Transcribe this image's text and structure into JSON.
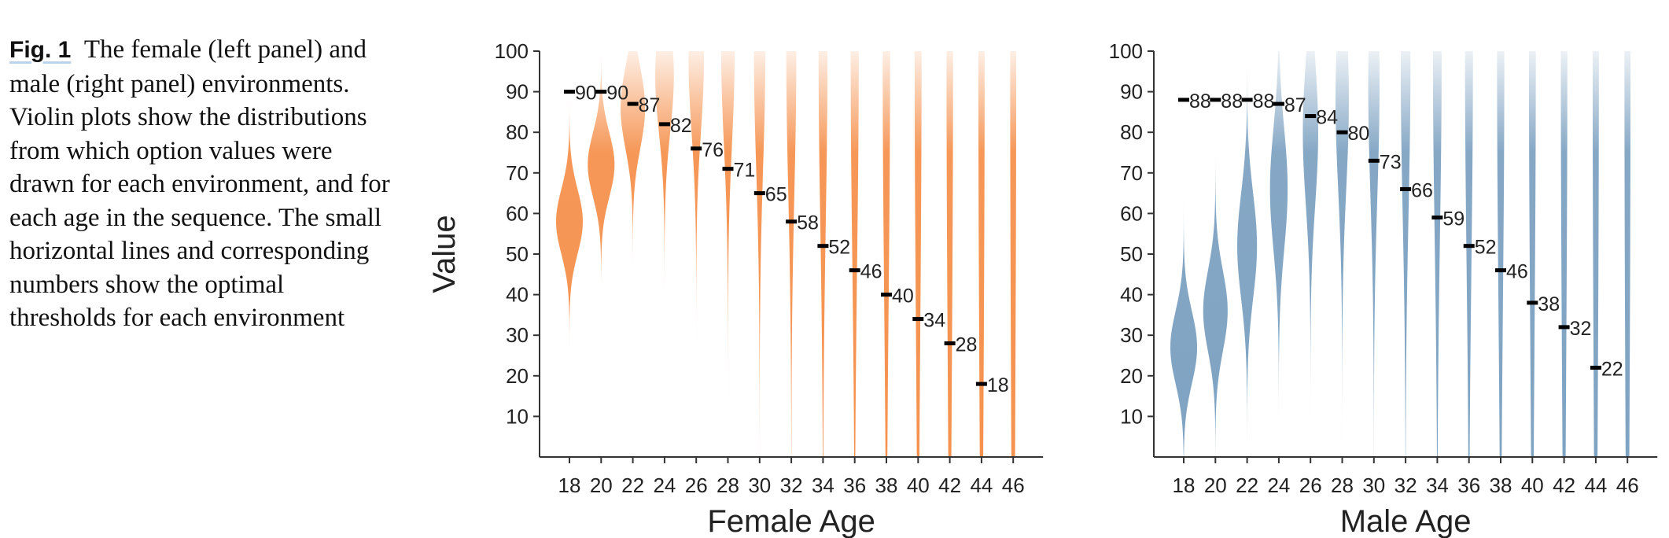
{
  "caption": {
    "label": "Fig. 1",
    "text": "The female (left panel) and male (right panel) environments. Violin plots show the distributions from which option values were drawn for each environment, and for each age in the sequence. The small horizontal lines and corresponding numbers show the optimal thresholds for each environment"
  },
  "colors": {
    "female": "#f5924f",
    "male": "#7fa3c2",
    "axis": "#333333",
    "threshold": "#000000"
  },
  "chart_data": [
    {
      "type": "violin",
      "panel": "left",
      "xlabel": "Female Age",
      "ylabel": "Value",
      "ylim": [
        0,
        100
      ],
      "yticks": [
        10,
        20,
        30,
        40,
        50,
        60,
        70,
        80,
        90,
        100
      ],
      "ages": [
        18,
        20,
        22,
        24,
        26,
        28,
        30,
        32,
        34,
        36,
        38,
        40,
        42,
        44,
        46
      ],
      "thresholds": [
        90,
        90,
        87,
        82,
        76,
        71,
        65,
        58,
        52,
        46,
        40,
        34,
        28,
        18
      ],
      "distribution_means": [
        58,
        72,
        86,
        94,
        98,
        99,
        99,
        99,
        99,
        99,
        99,
        99,
        99,
        99,
        99
      ],
      "distribution_sds": [
        8,
        8,
        10,
        14,
        18,
        22,
        28,
        34,
        42,
        50,
        60,
        70,
        80,
        90,
        100
      ]
    },
    {
      "type": "violin",
      "panel": "right",
      "xlabel": "Male Age",
      "ylabel": "",
      "ylim": [
        0,
        100
      ],
      "yticks": [
        10,
        20,
        30,
        40,
        50,
        60,
        70,
        80,
        90,
        100
      ],
      "ages": [
        18,
        20,
        22,
        24,
        26,
        28,
        30,
        32,
        34,
        36,
        38,
        40,
        42,
        44,
        46
      ],
      "thresholds": [
        88,
        88,
        88,
        87,
        84,
        80,
        73,
        66,
        59,
        52,
        46,
        38,
        32,
        22
      ],
      "distribution_means": [
        27,
        36,
        52,
        66,
        80,
        88,
        92,
        96,
        98,
        99,
        99,
        99,
        99,
        99,
        99
      ],
      "distribution_sds": [
        9,
        10,
        13,
        15,
        18,
        22,
        28,
        36,
        44,
        52,
        62,
        72,
        82,
        92,
        100
      ]
    }
  ]
}
